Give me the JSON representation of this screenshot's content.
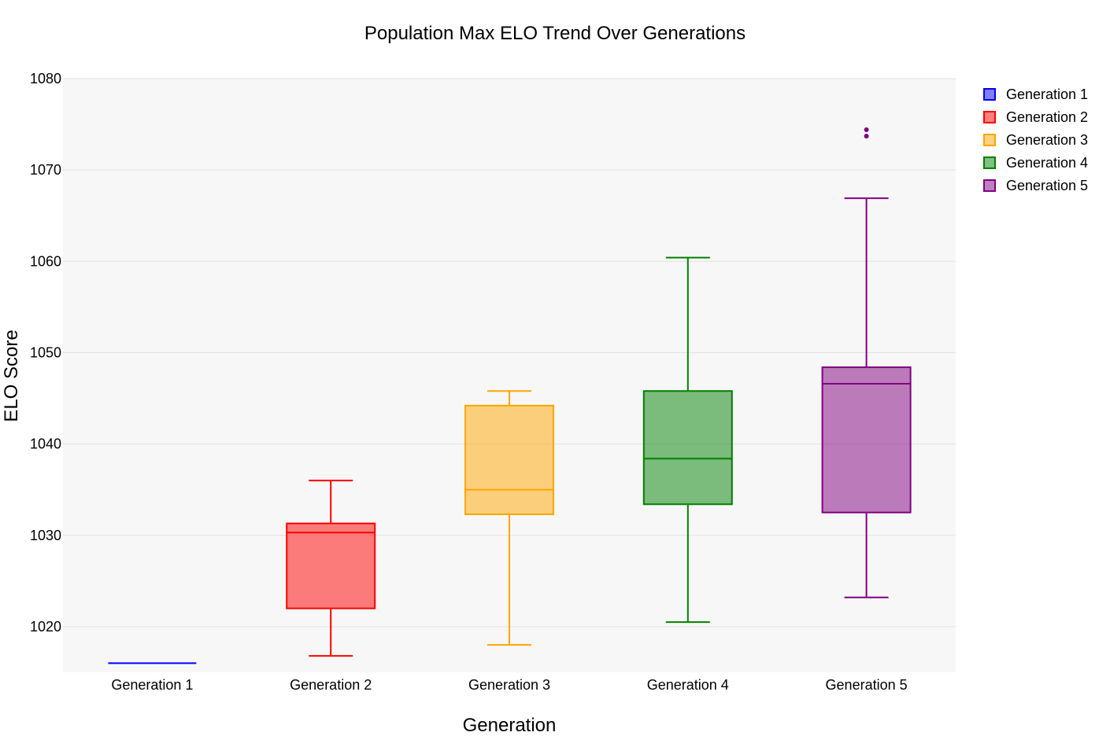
{
  "chart_data": {
    "type": "box",
    "title": "Population Max ELO Trend Over Generations",
    "xlabel": "Generation",
    "ylabel": "ELO Score",
    "ylim": [
      1015,
      1080
    ],
    "yticks": [
      1020,
      1030,
      1040,
      1050,
      1060,
      1070,
      1080
    ],
    "grid": true,
    "legend_position": "top-right",
    "categories": [
      "Generation 1",
      "Generation 2",
      "Generation 3",
      "Generation 4",
      "Generation 5"
    ],
    "series": [
      {
        "name": "Generation 1",
        "color": "#0000ff",
        "fill": "rgba(0,0,255,0.5)",
        "min": 1016,
        "q1": 1016,
        "median": 1016,
        "q3": 1016,
        "max": 1016,
        "outliers": []
      },
      {
        "name": "Generation 2",
        "color": "#ff0000",
        "fill": "rgba(255,0,0,0.5)",
        "min": 1016.8,
        "q1": 1022,
        "median": 1030.3,
        "q3": 1031.3,
        "max": 1036,
        "outliers": []
      },
      {
        "name": "Generation 3",
        "color": "#ffa500",
        "fill": "rgba(255,165,0,0.5)",
        "min": 1018,
        "q1": 1032.3,
        "median": 1035,
        "q3": 1044.2,
        "max": 1045.8,
        "outliers": []
      },
      {
        "name": "Generation 4",
        "color": "#008000",
        "fill": "rgba(0,128,0,0.5)",
        "min": 1020.5,
        "q1": 1033.4,
        "median": 1038.4,
        "q3": 1045.8,
        "max": 1060.4,
        "outliers": []
      },
      {
        "name": "Generation 5",
        "color": "#800080",
        "fill": "rgba(128,0,128,0.5)",
        "min": 1023.2,
        "q1": 1032.5,
        "median": 1046.6,
        "q3": 1048.4,
        "max": 1066.9,
        "outliers": [
          1073.7,
          1074.4
        ]
      }
    ]
  }
}
